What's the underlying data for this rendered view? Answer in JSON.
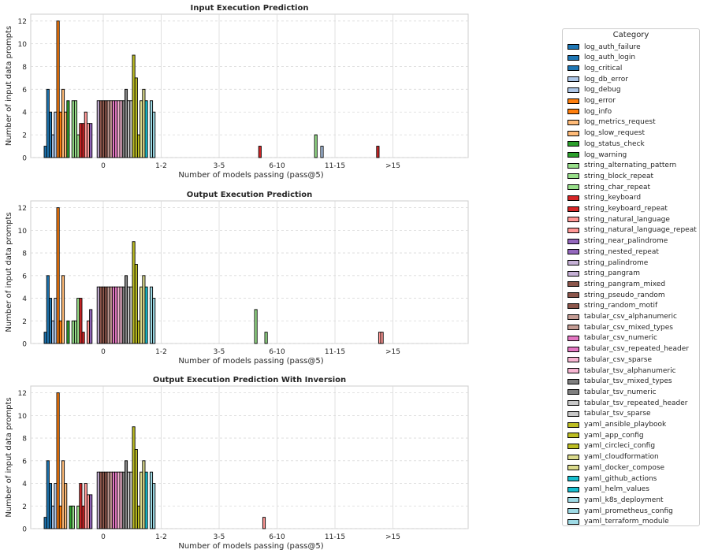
{
  "chart_data": [
    {
      "type": "bar",
      "title": "Input Execution Prediction",
      "xlabel": "Number of models passing (pass@5)",
      "ylabel": "Number of input data prompts",
      "ylim": [
        0,
        12.6
      ],
      "yticks": [
        0,
        2,
        4,
        6,
        8,
        10,
        12
      ],
      "categories": [
        "0",
        "1-2",
        "3-5",
        "6-10",
        "11-15",
        ">15"
      ],
      "grid": true,
      "series_values": [
        1,
        6,
        4,
        2,
        4,
        12,
        4,
        6,
        4,
        5,
        0,
        5,
        5,
        2,
        3,
        3,
        4,
        3,
        3,
        0,
        0,
        5,
        5,
        5,
        5,
        5,
        5,
        5,
        5,
        5,
        5,
        5,
        6,
        5,
        5,
        9,
        7,
        2,
        5,
        6,
        5,
        0,
        5,
        4
      ],
      "outliers": [
        {
          "series": "string_keyboard",
          "category": "3-5",
          "value": 1
        },
        {
          "series": "string_char_repeat",
          "category": "6-10",
          "value": 2
        },
        {
          "series": "log_debug",
          "category": "6-10",
          "value": 1
        },
        {
          "series": "string_keyboard_repeat",
          "category": "11-15",
          "value": 1
        }
      ]
    },
    {
      "type": "bar",
      "title": "Output Execution Prediction",
      "xlabel": "Number of models passing (pass@5)",
      "ylabel": "Number of input data prompts",
      "ylim": [
        0,
        12.6
      ],
      "yticks": [
        0,
        2,
        4,
        6,
        8,
        10,
        12
      ],
      "categories": [
        "0",
        "1-2",
        "3-5",
        "6-10",
        "11-15",
        ">15"
      ],
      "grid": true,
      "series_values": [
        1,
        6,
        4,
        2,
        4,
        12,
        2,
        6,
        0,
        2,
        0,
        2,
        2,
        4,
        4,
        1,
        0,
        2,
        3,
        0,
        0,
        5,
        5,
        5,
        5,
        5,
        5,
        5,
        5,
        5,
        5,
        5,
        6,
        5,
        5,
        9,
        7,
        2,
        5,
        6,
        5,
        0,
        5,
        4
      ],
      "outliers": [
        {
          "series": "string_alternating_pattern",
          "category": "3-5",
          "value": 1
        },
        {
          "series": "string_block_repeat",
          "category": "3-5",
          "value": 3
        },
        {
          "series": "string_natural_language",
          "category": "11-15",
          "value": 1
        },
        {
          "series": "string_natural_language_repeat",
          "category": "11-15",
          "value": 1
        }
      ]
    },
    {
      "type": "bar",
      "title": "Output Execution Prediction With Inversion",
      "xlabel": "Number of models passing (pass@5)",
      "ylabel": "Number of input data prompts",
      "ylim": [
        0,
        12.6
      ],
      "yticks": [
        0,
        2,
        4,
        6,
        8,
        10,
        12
      ],
      "categories": [
        "0",
        "1-2",
        "3-5",
        "6-10",
        "11-15",
        ">15"
      ],
      "grid": true,
      "series_values": [
        1,
        6,
        4,
        2,
        4,
        12,
        2,
        6,
        4,
        0,
        2,
        2,
        0,
        2,
        4,
        2,
        4,
        3,
        3,
        0,
        0,
        5,
        5,
        5,
        5,
        5,
        5,
        5,
        5,
        5,
        5,
        5,
        6,
        5,
        5,
        9,
        7,
        2,
        5,
        6,
        5,
        0,
        5,
        4
      ],
      "outliers": [
        {
          "series": "string_natural_language",
          "category": "3-5",
          "value": 1
        }
      ]
    }
  ],
  "legend": {
    "title": "Category",
    "placement": "right",
    "series": [
      {
        "name": "log_auth_failure",
        "color": "#1f77b4"
      },
      {
        "name": "log_auth_login",
        "color": "#1f77b4"
      },
      {
        "name": "log_critical",
        "color": "#1f77b4"
      },
      {
        "name": "log_db_error",
        "color": "#aec7e8"
      },
      {
        "name": "log_debug",
        "color": "#aec7e8"
      },
      {
        "name": "log_error",
        "color": "#ff7f0e"
      },
      {
        "name": "log_info",
        "color": "#ff7f0e"
      },
      {
        "name": "log_metrics_request",
        "color": "#ffbb78"
      },
      {
        "name": "log_slow_request",
        "color": "#ffbb78"
      },
      {
        "name": "log_status_check",
        "color": "#2ca02c"
      },
      {
        "name": "log_warning",
        "color": "#2ca02c"
      },
      {
        "name": "string_alternating_pattern",
        "color": "#98df8a"
      },
      {
        "name": "string_block_repeat",
        "color": "#98df8a"
      },
      {
        "name": "string_char_repeat",
        "color": "#98df8a"
      },
      {
        "name": "string_keyboard",
        "color": "#d62728"
      },
      {
        "name": "string_keyboard_repeat",
        "color": "#d62728"
      },
      {
        "name": "string_natural_language",
        "color": "#ff9896"
      },
      {
        "name": "string_natural_language_repeat",
        "color": "#ff9896"
      },
      {
        "name": "string_near_palindrome",
        "color": "#9467bd"
      },
      {
        "name": "string_nested_repeat",
        "color": "#9467bd"
      },
      {
        "name": "string_palindrome",
        "color": "#c5b0d5"
      },
      {
        "name": "string_pangram",
        "color": "#c5b0d5"
      },
      {
        "name": "string_pangram_mixed",
        "color": "#8c564b"
      },
      {
        "name": "string_pseudo_random",
        "color": "#8c564b"
      },
      {
        "name": "string_random_motif",
        "color": "#8c564b"
      },
      {
        "name": "tabular_csv_alphanumeric",
        "color": "#c49c94"
      },
      {
        "name": "tabular_csv_mixed_types",
        "color": "#c49c94"
      },
      {
        "name": "tabular_csv_numeric",
        "color": "#e377c2"
      },
      {
        "name": "tabular_csv_repeated_header",
        "color": "#e377c2"
      },
      {
        "name": "tabular_csv_sparse",
        "color": "#f7b6d2"
      },
      {
        "name": "tabular_tsv_alphanumeric",
        "color": "#f7b6d2"
      },
      {
        "name": "tabular_tsv_mixed_types",
        "color": "#7f7f7f"
      },
      {
        "name": "tabular_tsv_numeric",
        "color": "#7f7f7f"
      },
      {
        "name": "tabular_tsv_repeated_header",
        "color": "#c7c7c7"
      },
      {
        "name": "tabular_tsv_sparse",
        "color": "#c7c7c7"
      },
      {
        "name": "yaml_ansible_playbook",
        "color": "#bcbd22"
      },
      {
        "name": "yaml_app_config",
        "color": "#bcbd22"
      },
      {
        "name": "yaml_circleci_config",
        "color": "#bcbd22"
      },
      {
        "name": "yaml_cloudformation",
        "color": "#dbdb8d"
      },
      {
        "name": "yaml_docker_compose",
        "color": "#dbdb8d"
      },
      {
        "name": "yaml_github_actions",
        "color": "#17becf"
      },
      {
        "name": "yaml_helm_values",
        "color": "#17becf"
      },
      {
        "name": "yaml_k8s_deployment",
        "color": "#9edae5"
      },
      {
        "name": "yaml_prometheus_config",
        "color": "#9edae5"
      },
      {
        "name": "yaml_terraform_module",
        "color": "#9edae5"
      }
    ]
  }
}
